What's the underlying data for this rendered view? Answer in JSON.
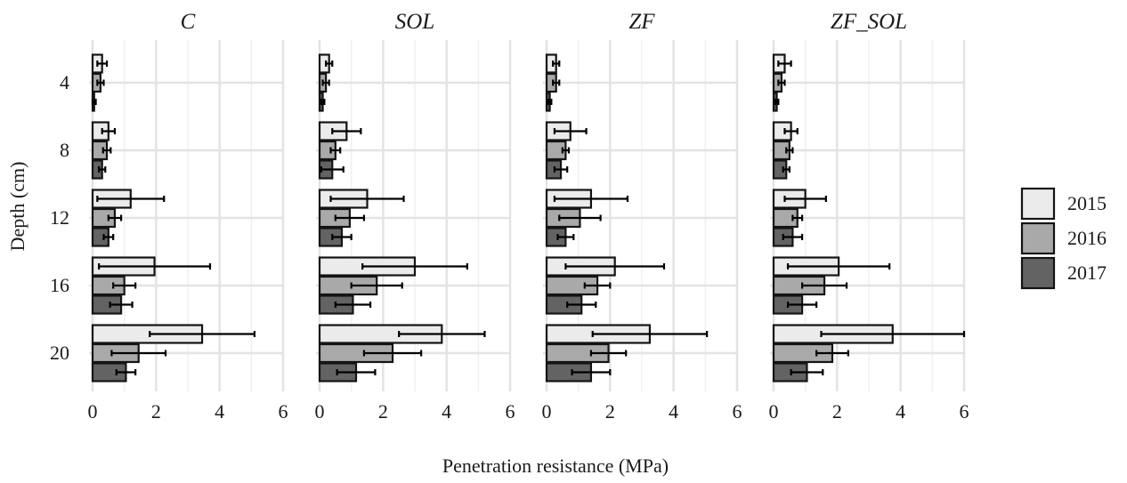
{
  "chart_data": {
    "type": "bar",
    "orientation": "horizontal",
    "xlabel": "Penetration resistance (MPa)",
    "ylabel": "Depth (cm)",
    "xlim": [
      0,
      6
    ],
    "x_ticks": [
      "0",
      "2",
      "4",
      "6"
    ],
    "depth_categories": [
      "4",
      "8",
      "12",
      "16",
      "20"
    ],
    "legend": {
      "placement": "right",
      "entries": [
        {
          "name": "2015",
          "color": "#ebebeb"
        },
        {
          "name": "2016",
          "color": "#a9a9a9"
        },
        {
          "name": "2017",
          "color": "#636363"
        }
      ]
    },
    "grid": true,
    "facets": [
      {
        "title": "C",
        "series": [
          {
            "name": "2015",
            "values": [
              0.3,
              0.5,
              1.2,
              1.95,
              3.45
            ],
            "errors": [
              0.15,
              0.2,
              1.05,
              1.75,
              1.65
            ]
          },
          {
            "name": "2016",
            "values": [
              0.25,
              0.45,
              0.7,
              1.0,
              1.45
            ],
            "errors": [
              0.1,
              0.12,
              0.2,
              0.35,
              0.85
            ]
          },
          {
            "name": "2017",
            "values": [
              0.05,
              0.3,
              0.5,
              0.9,
              1.05
            ],
            "errors": [
              0.05,
              0.1,
              0.15,
              0.35,
              0.3
            ]
          }
        ]
      },
      {
        "title": "SOL",
        "series": [
          {
            "name": "2015",
            "values": [
              0.3,
              0.85,
              1.5,
              3.0,
              3.85
            ],
            "errors": [
              0.1,
              0.45,
              1.15,
              1.65,
              1.35
            ]
          },
          {
            "name": "2016",
            "values": [
              0.2,
              0.5,
              0.95,
              1.8,
              2.3
            ],
            "errors": [
              0.1,
              0.15,
              0.45,
              0.8,
              0.9
            ]
          },
          {
            "name": "2017",
            "values": [
              0.1,
              0.4,
              0.7,
              1.05,
              1.15
            ],
            "errors": [
              0.05,
              0.35,
              0.3,
              0.55,
              0.6
            ]
          }
        ]
      },
      {
        "title": "ZF",
        "series": [
          {
            "name": "2015",
            "values": [
              0.3,
              0.75,
              1.4,
              2.15,
              3.25
            ],
            "errors": [
              0.1,
              0.5,
              1.15,
              1.55,
              1.8
            ]
          },
          {
            "name": "2016",
            "values": [
              0.3,
              0.6,
              1.05,
              1.6,
              1.95
            ],
            "errors": [
              0.1,
              0.1,
              0.65,
              0.4,
              0.55
            ]
          },
          {
            "name": "2017",
            "values": [
              0.1,
              0.45,
              0.6,
              1.1,
              1.4
            ],
            "errors": [
              0.05,
              0.2,
              0.25,
              0.45,
              0.6
            ]
          }
        ]
      },
      {
        "title": "ZF_SOL",
        "series": [
          {
            "name": "2015",
            "values": [
              0.35,
              0.55,
              1.0,
              2.05,
              3.75
            ],
            "errors": [
              0.2,
              0.2,
              0.65,
              1.6,
              2.25
            ]
          },
          {
            "name": "2016",
            "values": [
              0.25,
              0.5,
              0.75,
              1.6,
              1.85
            ],
            "errors": [
              0.1,
              0.1,
              0.15,
              0.7,
              0.5
            ]
          },
          {
            "name": "2017",
            "values": [
              0.1,
              0.4,
              0.6,
              0.9,
              1.05
            ],
            "errors": [
              0.05,
              0.1,
              0.3,
              0.45,
              0.5
            ]
          }
        ]
      }
    ]
  }
}
